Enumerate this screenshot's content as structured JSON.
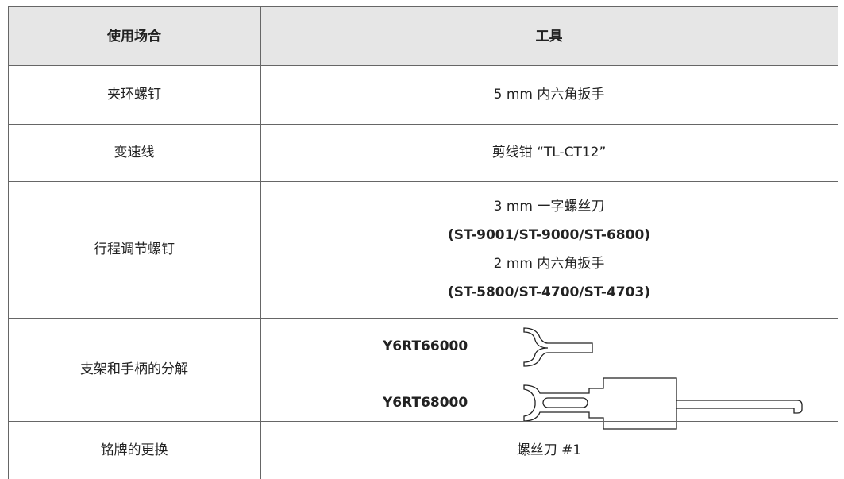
{
  "table": {
    "header": [
      "使用场合",
      "工具"
    ],
    "rows": [
      [
        "夹环螺钉",
        "5 mm 内六角扳手"
      ],
      [
        "变速线",
        "剪线钳 “TL-CT12”"
      ],
      [
        "行程调节螺钉",
        [
          "3 mm 一字螺丝刀",
          "(ST-9001/ST-9000/ST-6800)",
          "2 mm 内六角扳手",
          "(ST-5800/ST-4700/ST-4703)"
        ]
      ],
      [
        "支架和手柄的分解",
        [
          "Y6RT66000",
          "Y6RT68000"
        ]
      ],
      [
        "铭牌的更换",
        "螺丝刀 #1"
      ]
    ]
  }
}
